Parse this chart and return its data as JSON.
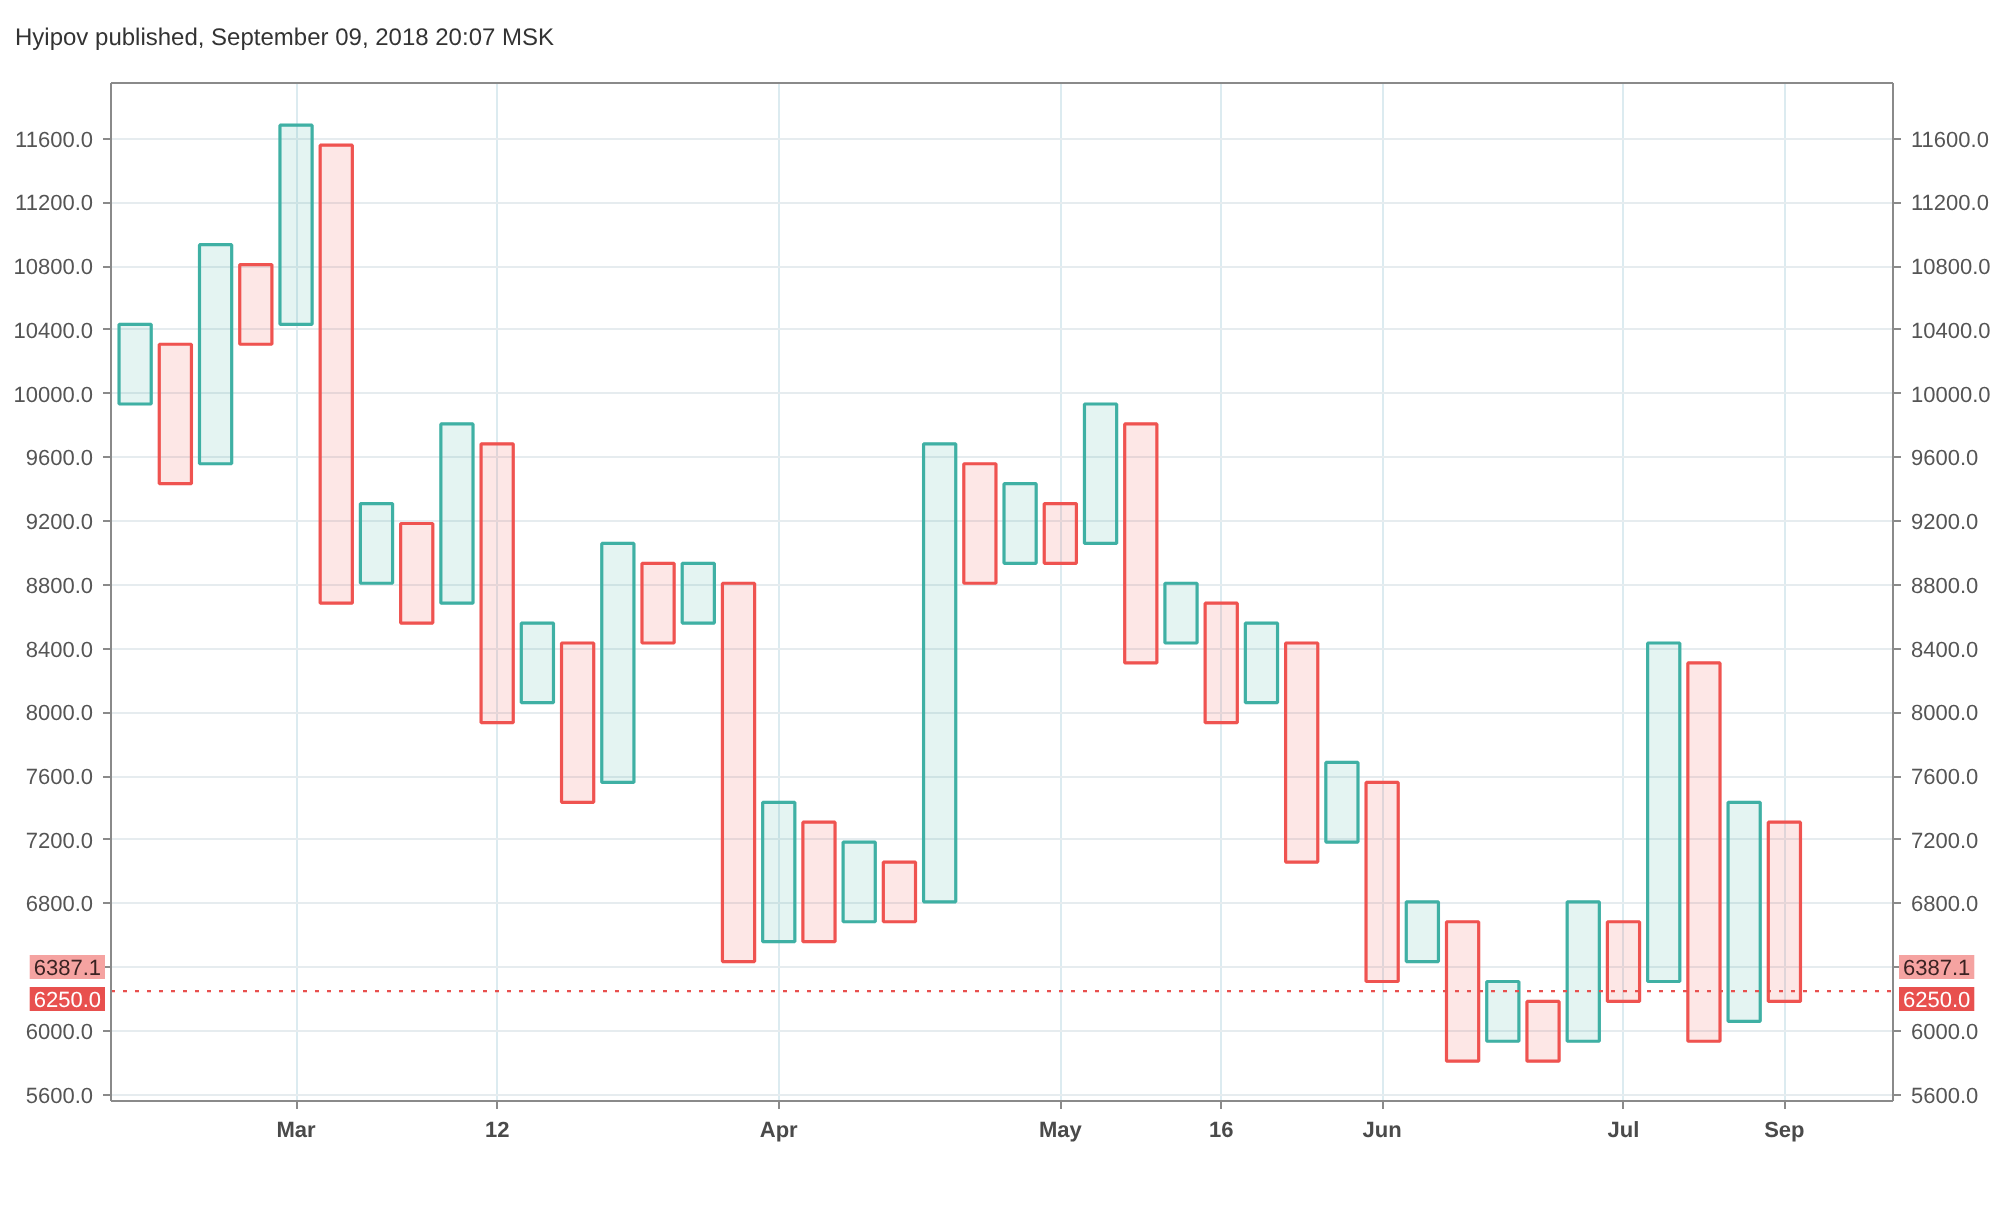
{
  "chart_data": {
    "type": "bar",
    "title": "Hyipov published, September 09, 2018 20:07 MSK",
    "categories": [
      null,
      null,
      null,
      null,
      "Mar",
      null,
      null,
      null,
      null,
      "12",
      null,
      null,
      null,
      null,
      null,
      null,
      "Apr",
      null,
      null,
      null,
      null,
      null,
      null,
      "May",
      null,
      null,
      null,
      "16",
      null,
      null,
      null,
      "Jun",
      null,
      null,
      null,
      null,
      null,
      "Jul",
      null,
      null,
      null,
      "Sep"
    ],
    "base": [
      9935,
      9435,
      9560,
      10310,
      10435,
      8685,
      8810,
      8560,
      8685,
      7935,
      8060,
      7435,
      7560,
      8435,
      8560,
      6435,
      6560,
      6560,
      6685,
      6685,
      6810,
      8810,
      8935,
      8935,
      9060,
      8310,
      8435,
      7935,
      8060,
      7060,
      7185,
      6310,
      6435,
      5810,
      5935,
      5810,
      5935,
      6185,
      6310,
      5935,
      6060,
      6185
    ],
    "values": [
      500,
      875,
      1375,
      500,
      1250,
      2875,
      500,
      625,
      1125,
      1750,
      500,
      1000,
      1500,
      500,
      375,
      2375,
      875,
      750,
      500,
      375,
      2875,
      750,
      500,
      375,
      875,
      1500,
      375,
      750,
      500,
      1375,
      500,
      1250,
      375,
      875,
      375,
      375,
      875,
      500,
      2125,
      2375,
      1375,
      1125
    ],
    "colors": [
      "#3fb0a4",
      "#ef5350",
      "#3fb0a4",
      "#ef5350",
      "#3fb0a4",
      "#ef5350",
      "#3fb0a4",
      "#ef5350",
      "#3fb0a4",
      "#ef5350",
      "#3fb0a4",
      "#ef5350",
      "#3fb0a4",
      "#ef5350",
      "#3fb0a4",
      "#ef5350",
      "#3fb0a4",
      "#ef5350",
      "#3fb0a4",
      "#ef5350",
      "#3fb0a4",
      "#ef5350",
      "#3fb0a4",
      "#ef5350",
      "#3fb0a4",
      "#ef5350",
      "#3fb0a4",
      "#ef5350",
      "#3fb0a4",
      "#ef5350",
      "#3fb0a4",
      "#ef5350",
      "#3fb0a4",
      "#ef5350",
      "#3fb0a4",
      "#ef5350",
      "#3fb0a4",
      "#ef5350",
      "#3fb0a4",
      "#ef5350",
      "#3fb0a4",
      "#ef5350"
    ],
    "ylim": [
      5560,
      11950
    ],
    "yticks": [
      {
        "value": 5600,
        "label": "5600.0"
      },
      {
        "value": 6000,
        "label": "6000.0"
      },
      {
        "value": 6400,
        "label": null
      },
      {
        "value": 6800,
        "label": "6800.0"
      },
      {
        "value": 7200,
        "label": "7200.0"
      },
      {
        "value": 7600,
        "label": "7600.0"
      },
      {
        "value": 8000,
        "label": "8000.0"
      },
      {
        "value": 8400,
        "label": "8400.0"
      },
      {
        "value": 8800,
        "label": "8800.0"
      },
      {
        "value": 9200,
        "label": "9200.0"
      },
      {
        "value": 9600,
        "label": "9600.0"
      },
      {
        "value": 10000,
        "label": "10000.0"
      },
      {
        "value": 10400,
        "label": "10400.0"
      },
      {
        "value": 10800,
        "label": "10800.0"
      },
      {
        "value": 11200,
        "label": "11200.0"
      },
      {
        "value": 11600,
        "label": "11600.0"
      }
    ],
    "y2lim": [
      5560,
      11950
    ],
    "y2ticks": [
      {
        "value": 5600,
        "label": "5600.0"
      },
      {
        "value": 6000,
        "label": "6000.0"
      },
      {
        "value": 6400,
        "label": null
      },
      {
        "value": 6800,
        "label": "6800.0"
      },
      {
        "value": 7200,
        "label": "7200.0"
      },
      {
        "value": 7600,
        "label": "7600.0"
      },
      {
        "value": 8000,
        "label": "8000.0"
      },
      {
        "value": 8400,
        "label": "8400.0"
      },
      {
        "value": 8800,
        "label": "8800.0"
      },
      {
        "value": 9200,
        "label": "9200.0"
      },
      {
        "value": 9600,
        "label": "9600.0"
      },
      {
        "value": 10000,
        "label": "10000.0"
      },
      {
        "value": 10400,
        "label": "10400.0"
      },
      {
        "value": 10800,
        "label": "10800.0"
      },
      {
        "value": 11200,
        "label": "11200.0"
      },
      {
        "value": 11600,
        "label": "11600.0"
      }
    ],
    "grid": true,
    "ref_lines": [
      {
        "axis": "y",
        "value": 6250,
        "label": "6250.0",
        "color": "#e8504e",
        "line_style": "dotted"
      }
    ],
    "annotations": [
      "6387.1"
    ]
  }
}
